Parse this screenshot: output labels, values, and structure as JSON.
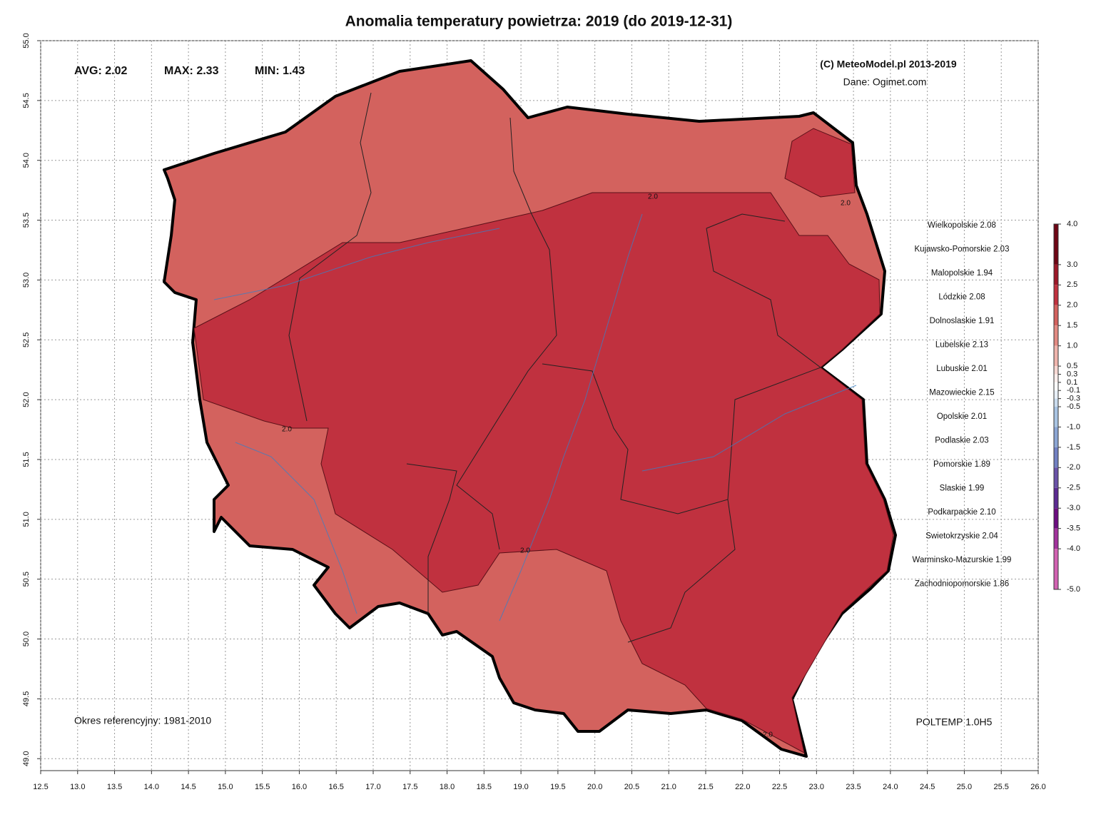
{
  "header": {
    "title": "Anomalia temperatury powietrza:  2019 (do 2019-12-31)",
    "copyright": "(C) MeteoModel.pl 2013-2019",
    "source": "Dane: Ogimet.com"
  },
  "stats": [
    {
      "text": "AVG: 2.02",
      "color": "#1a6e1a"
    },
    {
      "text": "MAX: 2.33",
      "color": "#e01010"
    },
    {
      "text": "MIN: 1.43",
      "color": "#10107a"
    }
  ],
  "axes": {
    "xlim": [
      12.5,
      26.0
    ],
    "ylim": [
      48.9,
      55.0
    ],
    "xticks": [
      {
        "value": 12.5,
        "label": "12.5"
      },
      {
        "value": 13,
        "label": "13.0"
      },
      {
        "value": 13.5,
        "label": "13.5"
      },
      {
        "value": 14,
        "label": "14.0"
      },
      {
        "value": 14.5,
        "label": "14.5"
      },
      {
        "value": 15,
        "label": "15.0"
      },
      {
        "value": 15.5,
        "label": "15.5"
      },
      {
        "value": 16,
        "label": "16.0"
      },
      {
        "value": 16.5,
        "label": "16.5"
      },
      {
        "value": 17,
        "label": "17.0"
      },
      {
        "value": 17.5,
        "label": "17.5"
      },
      {
        "value": 18,
        "label": "18.0"
      },
      {
        "value": 18.5,
        "label": "18.5"
      },
      {
        "value": 19,
        "label": "19.0"
      },
      {
        "value": 19.5,
        "label": "19.5"
      },
      {
        "value": 20,
        "label": "20.0"
      },
      {
        "value": 20.5,
        "label": "20.5"
      },
      {
        "value": 21,
        "label": "21.0"
      },
      {
        "value": 21.5,
        "label": "21.5"
      },
      {
        "value": 22,
        "label": "22.0"
      },
      {
        "value": 22.5,
        "label": "22.5"
      },
      {
        "value": 23,
        "label": "23.0"
      },
      {
        "value": 23.5,
        "label": "23.5"
      },
      {
        "value": 24,
        "label": "24.0"
      },
      {
        "value": 24.5,
        "label": "24.5"
      },
      {
        "value": 25,
        "label": "25.0"
      },
      {
        "value": 25.5,
        "label": "25.5"
      },
      {
        "value": 26,
        "label": "26.0"
      }
    ],
    "yticks": [
      {
        "value": 49,
        "label": "49.0"
      },
      {
        "value": 49.5,
        "label": "49.5"
      },
      {
        "value": 50,
        "label": "50.0"
      },
      {
        "value": 50.5,
        "label": "50.5"
      },
      {
        "value": 51,
        "label": "51.0"
      },
      {
        "value": 51.5,
        "label": "51.5"
      },
      {
        "value": 52,
        "label": "52.0"
      },
      {
        "value": 52.5,
        "label": "52.5"
      },
      {
        "value": 53,
        "label": "53.0"
      },
      {
        "value": 53.5,
        "label": "53.5"
      },
      {
        "value": 54,
        "label": "54.0"
      },
      {
        "value": 54.5,
        "label": "54.5"
      },
      {
        "value": 55,
        "label": "55.0"
      }
    ]
  },
  "regions": [
    "Wielkopolskie 2.08",
    "Kujawsko-Pomorskie 2.03",
    "Malopolskie 1.94",
    "Lódzkie 2.08",
    "Dolnoslaskie 1.91",
    "Lubelskie 2.13",
    "Lubuskie 2.01",
    "Mazowieckie 2.15",
    "Opolskie 2.01",
    "Podlaskie 2.03",
    "Pomorskie 1.89",
    "Slaskie 1.99",
    "Podkarpackie 2.10",
    "Swietokrzyskie 2.04",
    "Warminsko-Mazurskie 1.99",
    "Zachodniopomorskie 1.86"
  ],
  "colorbar": {
    "lim": [
      -5.0,
      4.0
    ],
    "ticks": [
      {
        "value": 4,
        "label": "4.0"
      },
      {
        "value": 3,
        "label": "3.0"
      },
      2.5,
      {
        "value": 2,
        "label": "2.0"
      },
      1.5,
      {
        "value": 1,
        "label": "1.0"
      },
      0.5,
      0.3,
      0.1,
      -0.1,
      -0.3,
      -0.5,
      {
        "value": -1,
        "label": "-1.0"
      },
      -1.5,
      {
        "value": -2,
        "label": "-2.0"
      },
      -2.5,
      {
        "value": -3,
        "label": "-3.0"
      },
      -3.5,
      {
        "value": -4,
        "label": "-4.0"
      },
      {
        "value": -5,
        "label": "-5.0"
      }
    ],
    "colors": [
      "#6e0615",
      "#9c1828",
      "#c0313f",
      "#d3625e",
      "#e28a82",
      "#efb4ac",
      "#f7d8d3",
      "#fcefed",
      "#ffffff",
      "#e8f0f8",
      "#cadcee",
      "#a9c4e3",
      "#8ca6d4",
      "#7180c2",
      "#6a52a8",
      "#5b2a92",
      "#6c0c80",
      "#a2329c",
      "#d262b2"
    ]
  },
  "contour_labels": [
    "2.0",
    "2.0",
    "2.0",
    "2.0",
    "2.0"
  ],
  "footer": {
    "reference": "Okres referencyjny: 1981-2010",
    "model": "POLTEMP 1.0H5"
  }
}
